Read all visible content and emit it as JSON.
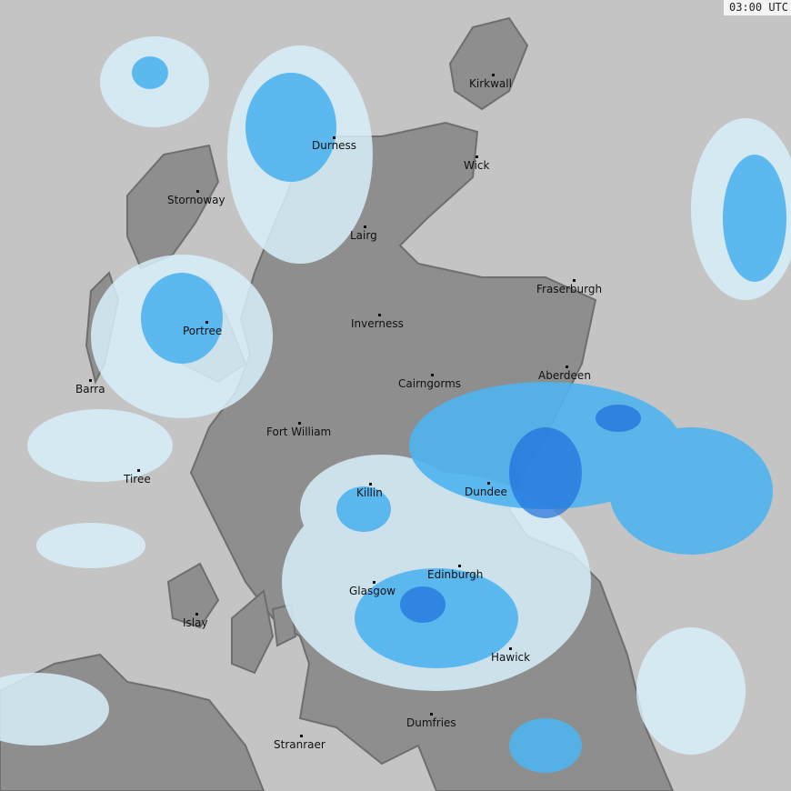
{
  "timestamp": "03:00 UTC",
  "colors": {
    "sea": "#c4c4c4",
    "land": "#8e8e8e",
    "coast": "#6e6e6e",
    "rain_light": "#d8f0fb",
    "rain_mid": "#4fb4f0",
    "rain_heavy": "#1e6fdc"
  },
  "places": [
    "Kirkwall",
    "Durness",
    "Wick",
    "Stornoway",
    "Lairg",
    "Fraserburgh",
    "Inverness",
    "Portree",
    "Aberdeen",
    "Barra",
    "Cairngorms",
    "Fort William",
    "Tiree",
    "Killin",
    "Dundee",
    "Edinburgh",
    "Glasgow",
    "Islay",
    "Hawick",
    "Dumfries",
    "Stranraer"
  ]
}
